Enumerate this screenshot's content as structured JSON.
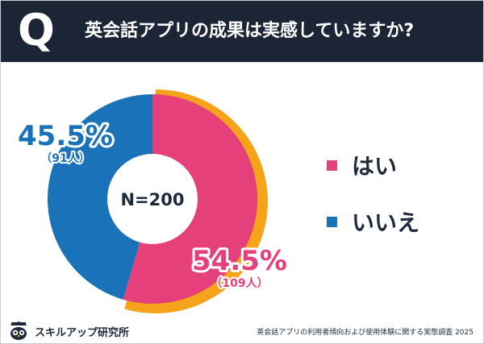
{
  "header": {
    "q_mark": "Q",
    "title": "英会話アプリの成果は実感していますか?"
  },
  "chart_data": {
    "type": "pie",
    "style": "donut",
    "title": "英会話アプリの成果は実感していますか?",
    "center_label": "N=200",
    "slices": [
      {
        "name": "はい",
        "value": 54.5,
        "percent_label": "54.5%",
        "count_label": "（109人）",
        "color": "#e6407a",
        "highlight_color": "#f5a31a"
      },
      {
        "name": "いいえ",
        "value": 45.5,
        "percent_label": "45.5%",
        "count_label": "（91人）",
        "color": "#1a72b8"
      }
    ],
    "legend_position": "right"
  },
  "legend": [
    {
      "label": "はい",
      "color": "#e6407a"
    },
    {
      "label": "いいえ",
      "color": "#1a72b8"
    }
  ],
  "footer": {
    "brand": "スキルアップ研究所",
    "source": "英会話アプリの利用者傾向および使用体験に関する実態調査 2025",
    "logo_icon": "owl-icon"
  },
  "colors": {
    "header_bg": "#1b2536",
    "text_dark": "#1e2a3c",
    "halo": "#ffffff"
  }
}
